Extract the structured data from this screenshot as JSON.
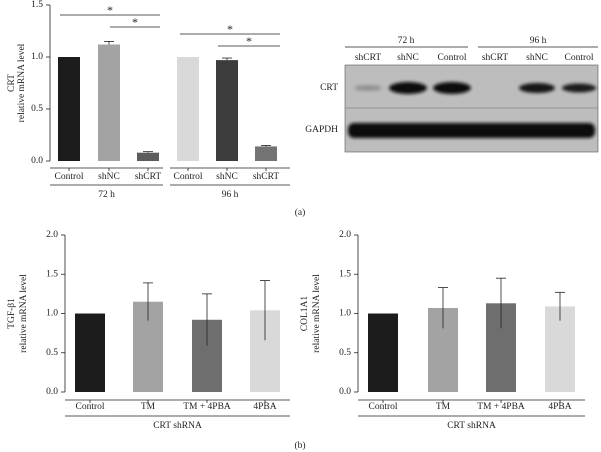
{
  "chart_data": [
    {
      "type": "bar",
      "y_label": [
        "CRT",
        "relative mRNA level"
      ],
      "categories": [
        "Control",
        "shNC",
        "shCRT",
        "Control",
        "shNC",
        "shCRT"
      ],
      "values": [
        1.0,
        1.12,
        0.08,
        1.0,
        0.97,
        0.14
      ],
      "errors": [
        0,
        0.03,
        0.01,
        0,
        0.02,
        0.01
      ],
      "colors": [
        "#1c1c1c",
        "#a3a3a3",
        "#5c5c5c",
        "#d9d9d9",
        "#3c3c3c",
        "#737373"
      ],
      "group_labels": [
        "72 h",
        "96 h"
      ],
      "annotations": [
        "*",
        "*",
        "*",
        "*"
      ],
      "ylim": [
        0,
        1.5
      ],
      "yticks": [
        {
          "value": 0,
          "label": "0.0"
        },
        0.5,
        {
          "value": 1,
          "label": "1.0"
        },
        1.5
      ]
    },
    {
      "type": "bar",
      "y_label": [
        "TGF-β1",
        "relative mRNA level"
      ],
      "categories": [
        "Control",
        "TM",
        "TM + 4PBA",
        "4PBA"
      ],
      "values": [
        1.0,
        1.15,
        0.92,
        1.04
      ],
      "errors": [
        0,
        0.24,
        0.33,
        0.38
      ],
      "colors": [
        "#1c1c1c",
        "#a3a3a3",
        "#6e6e6e",
        "#d9d9d9"
      ],
      "group_labels": [
        "CRT shRNA"
      ],
      "ylim": [
        0,
        2
      ],
      "yticks": [
        {
          "value": 0,
          "label": "0.0"
        },
        0.5,
        {
          "value": 1,
          "label": "1.0"
        },
        1.5,
        {
          "value": 2,
          "label": "2.0"
        }
      ]
    },
    {
      "type": "bar",
      "y_label": [
        "COL1A1",
        "relative mRNA level"
      ],
      "categories": [
        "Control",
        "TM",
        "TM + 4PBA",
        "4PBA"
      ],
      "values": [
        1.0,
        1.07,
        1.13,
        1.09
      ],
      "errors": [
        0,
        0.26,
        0.32,
        0.18
      ],
      "colors": [
        "#1c1c1c",
        "#a3a3a3",
        "#6e6e6e",
        "#d9d9d9"
      ],
      "group_labels": [
        "CRT shRNA"
      ],
      "ylim": [
        0,
        2
      ],
      "yticks": [
        {
          "value": 0,
          "label": "0.0"
        },
        0.5,
        {
          "value": 1,
          "label": "1.0"
        },
        1.5,
        {
          "value": 2,
          "label": "2.0"
        }
      ]
    }
  ],
  "blot": {
    "group_labels": [
      "72 h",
      "96 h"
    ],
    "lanes": [
      "shCRT",
      "shNC",
      "Control",
      "shCRT",
      "shNC",
      "Control"
    ],
    "rows": [
      "CRT",
      "GAPDH"
    ]
  },
  "panel_labels": [
    "(a)",
    "(b)"
  ]
}
